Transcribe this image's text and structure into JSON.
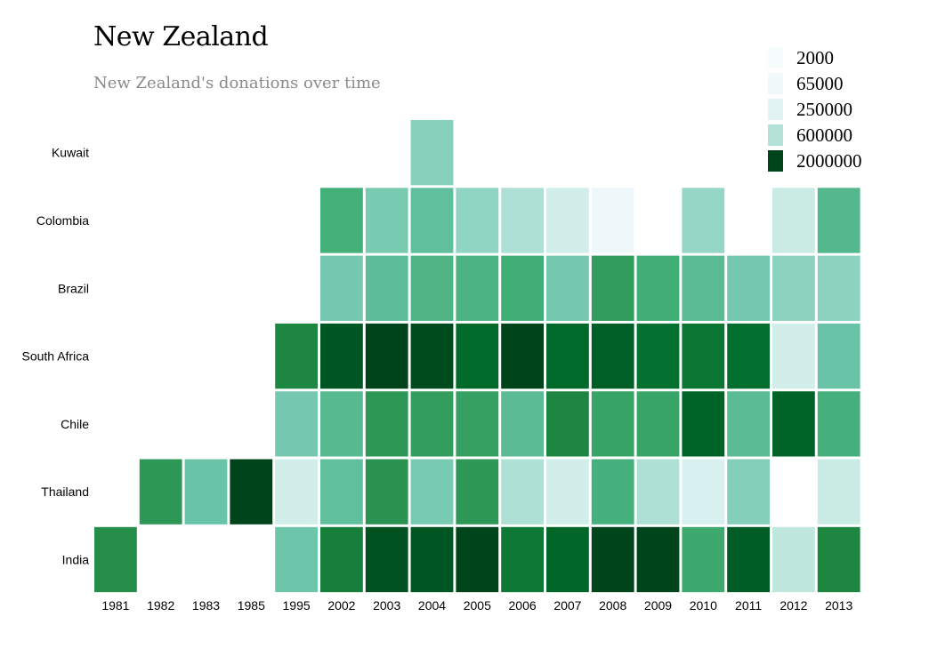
{
  "chart_data": {
    "type": "heatmap",
    "title": "New Zealand",
    "subtitle": "New Zealand's donations over time",
    "x_categories": [
      "1981",
      "1982",
      "1983",
      "1985",
      "1995",
      "2002",
      "2003",
      "2004",
      "2005",
      "2006",
      "2007",
      "2008",
      "2009",
      "2010",
      "2011",
      "2012",
      "2013"
    ],
    "y_categories": [
      "Kuwait",
      "Colombia",
      "Brazil",
      "South Africa",
      "Chile",
      "Thailand",
      "India"
    ],
    "legend": {
      "thresholds": [
        2000,
        65000,
        250000,
        600000,
        2000000
      ],
      "labels": [
        "2000",
        "65000",
        "250000",
        "600000",
        "2000000"
      ],
      "colors": [
        "#f7fcfd",
        "#f2f9fb",
        "#e1f3f3",
        "#b3e3d6",
        "#00441b"
      ]
    },
    "cells": [
      {
        "y": "Kuwait",
        "x": "2004",
        "value": 75000
      },
      {
        "y": "Colombia",
        "x": "2002",
        "value": 250000
      },
      {
        "y": "Colombia",
        "x": "2003",
        "value": 95000
      },
      {
        "y": "Colombia",
        "x": "2004",
        "value": 140000
      },
      {
        "y": "Colombia",
        "x": "2005",
        "value": 65000
      },
      {
        "y": "Colombia",
        "x": "2006",
        "value": 40000
      },
      {
        "y": "Colombia",
        "x": "2007",
        "value": 20000
      },
      {
        "y": "Colombia",
        "x": "2008",
        "value": 5000
      },
      {
        "y": "Colombia",
        "x": "2010",
        "value": 60000
      },
      {
        "y": "Colombia",
        "x": "2012",
        "value": 25000
      },
      {
        "y": "Colombia",
        "x": "2013",
        "value": 180000
      },
      {
        "y": "Brazil",
        "x": "2002",
        "value": 100000
      },
      {
        "y": "Brazil",
        "x": "2003",
        "value": 150000
      },
      {
        "y": "Brazil",
        "x": "2004",
        "value": 200000
      },
      {
        "y": "Brazil",
        "x": "2005",
        "value": 210000
      },
      {
        "y": "Brazil",
        "x": "2006",
        "value": 260000
      },
      {
        "y": "Brazil",
        "x": "2007",
        "value": 100000
      },
      {
        "y": "Brazil",
        "x": "2008",
        "value": 380000
      },
      {
        "y": "Brazil",
        "x": "2009",
        "value": 260000
      },
      {
        "y": "Brazil",
        "x": "2010",
        "value": 160000
      },
      {
        "y": "Brazil",
        "x": "2011",
        "value": 100000
      },
      {
        "y": "Brazil",
        "x": "2012",
        "value": 70000
      },
      {
        "y": "Brazil",
        "x": "2013",
        "value": 70000
      },
      {
        "y": "South Africa",
        "x": "1995",
        "value": 600000
      },
      {
        "y": "South Africa",
        "x": "2002",
        "value": 1500000
      },
      {
        "y": "South Africa",
        "x": "2003",
        "value": 2000000
      },
      {
        "y": "South Africa",
        "x": "2004",
        "value": 1800000
      },
      {
        "y": "South Africa",
        "x": "2005",
        "value": 1100000
      },
      {
        "y": "South Africa",
        "x": "2006",
        "value": 2000000
      },
      {
        "y": "South Africa",
        "x": "2007",
        "value": 1100000
      },
      {
        "y": "South Africa",
        "x": "2008",
        "value": 1300000
      },
      {
        "y": "South Africa",
        "x": "2009",
        "value": 950000
      },
      {
        "y": "South Africa",
        "x": "2010",
        "value": 850000
      },
      {
        "y": "South Africa",
        "x": "2011",
        "value": 1000000
      },
      {
        "y": "South Africa",
        "x": "2012",
        "value": 20000
      },
      {
        "y": "South Africa",
        "x": "2013",
        "value": 120000
      },
      {
        "y": "Chile",
        "x": "1995",
        "value": 100000
      },
      {
        "y": "Chile",
        "x": "2002",
        "value": 170000
      },
      {
        "y": "Chile",
        "x": "2003",
        "value": 420000
      },
      {
        "y": "Chile",
        "x": "2004",
        "value": 370000
      },
      {
        "y": "Chile",
        "x": "2005",
        "value": 350000
      },
      {
        "y": "Chile",
        "x": "2006",
        "value": 160000
      },
      {
        "y": "Chile",
        "x": "2007",
        "value": 600000
      },
      {
        "y": "Chile",
        "x": "2008",
        "value": 330000
      },
      {
        "y": "Chile",
        "x": "2009",
        "value": 320000
      },
      {
        "y": "Chile",
        "x": "2010",
        "value": 1200000
      },
      {
        "y": "Chile",
        "x": "2011",
        "value": 160000
      },
      {
        "y": "Chile",
        "x": "2012",
        "value": 1200000
      },
      {
        "y": "Chile",
        "x": "2013",
        "value": 240000
      },
      {
        "y": "Thailand",
        "x": "1982",
        "value": 420000
      },
      {
        "y": "Thailand",
        "x": "1983",
        "value": 120000
      },
      {
        "y": "Thailand",
        "x": "1985",
        "value": 2000000
      },
      {
        "y": "Thailand",
        "x": "1995",
        "value": 20000
      },
      {
        "y": "Thailand",
        "x": "2002",
        "value": 140000
      },
      {
        "y": "Thailand",
        "x": "2003",
        "value": 450000
      },
      {
        "y": "Thailand",
        "x": "2004",
        "value": 95000
      },
      {
        "y": "Thailand",
        "x": "2005",
        "value": 420000
      },
      {
        "y": "Thailand",
        "x": "2006",
        "value": 40000
      },
      {
        "y": "Thailand",
        "x": "2007",
        "value": 20000
      },
      {
        "y": "Thailand",
        "x": "2008",
        "value": 240000
      },
      {
        "y": "Thailand",
        "x": "2009",
        "value": 40000
      },
      {
        "y": "Thailand",
        "x": "2010",
        "value": 15000
      },
      {
        "y": "Thailand",
        "x": "2011",
        "value": 80000
      },
      {
        "y": "Thailand",
        "x": "2013",
        "value": 25000
      },
      {
        "y": "India",
        "x": "1981",
        "value": 500000
      },
      {
        "y": "India",
        "x": "1995",
        "value": 110000
      },
      {
        "y": "India",
        "x": "2002",
        "value": 700000
      },
      {
        "y": "India",
        "x": "2003",
        "value": 1600000
      },
      {
        "y": "India",
        "x": "2004",
        "value": 1500000
      },
      {
        "y": "India",
        "x": "2005",
        "value": 2000000
      },
      {
        "y": "India",
        "x": "2006",
        "value": 800000
      },
      {
        "y": "India",
        "x": "2007",
        "value": 1150000
      },
      {
        "y": "India",
        "x": "2008",
        "value": 2000000
      },
      {
        "y": "India",
        "x": "2009",
        "value": 2000000
      },
      {
        "y": "India",
        "x": "2010",
        "value": 290000
      },
      {
        "y": "India",
        "x": "2011",
        "value": 1350000
      },
      {
        "y": "India",
        "x": "2012",
        "value": 30000
      },
      {
        "y": "India",
        "x": "2013",
        "value": 600000
      }
    ]
  }
}
